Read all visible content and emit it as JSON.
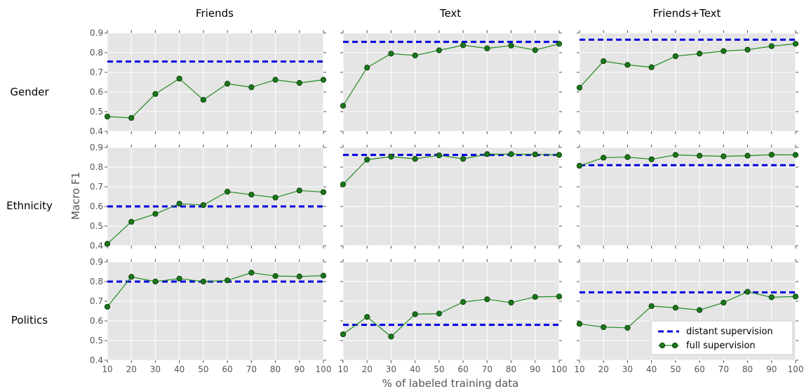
{
  "chart_data": {
    "type": "line",
    "column_titles": [
      "Friends",
      "Text",
      "Friends+Text"
    ],
    "row_titles": [
      "Gender",
      "Ethnicity",
      "Politics"
    ],
    "xlabel": "% of labeled training data",
    "ylabel": "Macro F1",
    "x": [
      10,
      20,
      30,
      40,
      50,
      60,
      70,
      80,
      90,
      100
    ],
    "xlim": [
      10,
      100
    ],
    "ylim": [
      0.4,
      0.9
    ],
    "x_ticks": [
      10,
      20,
      30,
      40,
      50,
      60,
      70,
      80,
      90,
      100
    ],
    "y_ticks": [
      0.4,
      0.5,
      0.6,
      0.7,
      0.8,
      0.9
    ],
    "y_tick_labels": [
      "0.4",
      "0.5",
      "0.6",
      "0.7",
      "0.8",
      "0.9"
    ],
    "grid": true,
    "legend": {
      "placement": "lower-right",
      "entries": [
        "distant supervision",
        "full supervision"
      ]
    },
    "colors": {
      "panel_bg": "#e5e5e5",
      "grid": "#ffffff",
      "distant": "#0000dd",
      "full_line": "#228b22",
      "full_marker": "#1a7a1a"
    },
    "panels": [
      {
        "row": "Gender",
        "column": "Friends",
        "distant_supervision": 0.755,
        "full_supervision": [
          0.475,
          0.468,
          0.59,
          0.668,
          0.56,
          0.642,
          0.624,
          0.662,
          0.646,
          0.662
        ]
      },
      {
        "row": "Gender",
        "column": "Text",
        "distant_supervision": 0.855,
        "full_supervision": [
          0.53,
          0.724,
          0.795,
          0.786,
          0.812,
          0.838,
          0.822,
          0.836,
          0.813,
          0.845
        ]
      },
      {
        "row": "Gender",
        "column": "Friends+Text",
        "distant_supervision": 0.866,
        "full_supervision": [
          0.622,
          0.757,
          0.738,
          0.726,
          0.782,
          0.795,
          0.808,
          0.815,
          0.833,
          0.845
        ]
      },
      {
        "row": "Ethnicity",
        "column": "Friends",
        "distant_supervision": 0.6,
        "full_supervision": [
          0.41,
          0.522,
          0.562,
          0.614,
          0.607,
          0.675,
          0.66,
          0.645,
          0.681,
          0.673
        ]
      },
      {
        "row": "Ethnicity",
        "column": "Text",
        "distant_supervision": 0.862,
        "full_supervision": [
          0.712,
          0.838,
          0.853,
          0.842,
          0.86,
          0.842,
          0.866,
          0.866,
          0.865,
          0.862
        ]
      },
      {
        "row": "Ethnicity",
        "column": "Friends+Text",
        "distant_supervision": 0.81,
        "full_supervision": [
          0.807,
          0.848,
          0.851,
          0.84,
          0.862,
          0.858,
          0.855,
          0.858,
          0.863,
          0.862
        ]
      },
      {
        "row": "Politics",
        "column": "Friends",
        "distant_supervision": 0.8,
        "full_supervision": [
          0.672,
          0.824,
          0.8,
          0.815,
          0.8,
          0.806,
          0.845,
          0.828,
          0.826,
          0.83
        ]
      },
      {
        "row": "Politics",
        "column": "Text",
        "distant_supervision": 0.58,
        "full_supervision": [
          0.532,
          0.62,
          0.52,
          0.634,
          0.637,
          0.696,
          0.71,
          0.693,
          0.722,
          0.724
        ]
      },
      {
        "row": "Politics",
        "column": "Friends+Text",
        "distant_supervision": 0.745,
        "full_supervision": [
          0.585,
          0.568,
          0.565,
          0.675,
          0.667,
          0.655,
          0.693,
          0.748,
          0.72,
          0.724
        ]
      }
    ]
  }
}
